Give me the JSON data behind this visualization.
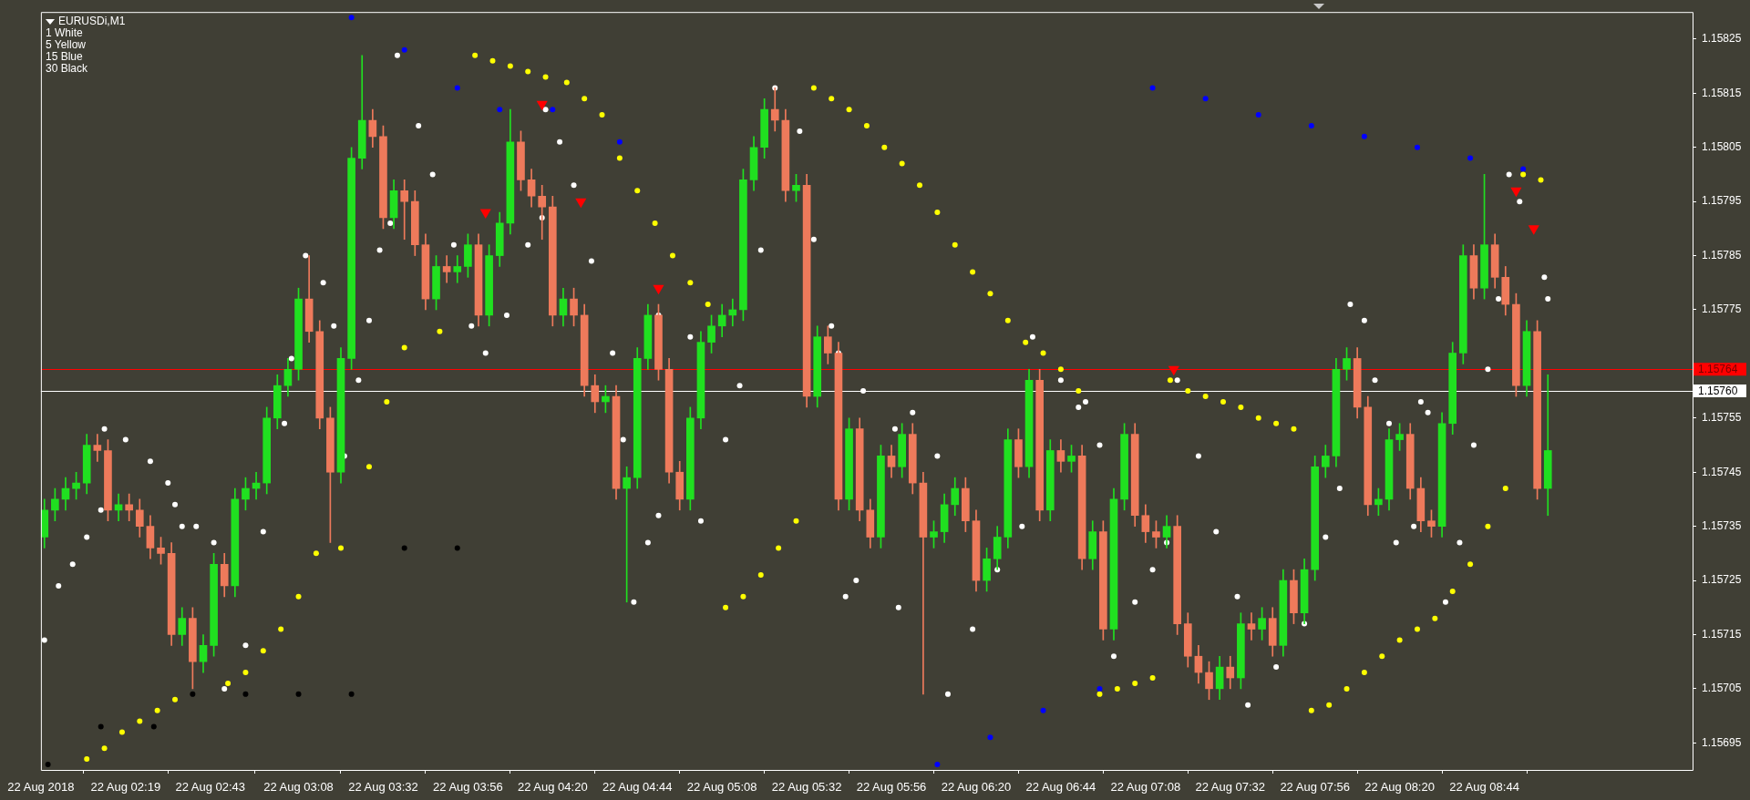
{
  "chart_data": {
    "type": "candlestick",
    "title": "EURUSDi,M1",
    "annotations": [
      "1 White",
      "5 Yellow",
      "15 Blue",
      "30 Black"
    ],
    "x": [
      "2018-08-22T01:56",
      "2018-08-22T01:59",
      "2018-08-22T02:02",
      "2018-08-22T02:05",
      "2018-08-22T02:08",
      "2018-08-22T02:11",
      "2018-08-22T02:14",
      "2018-08-22T02:17",
      "2018-08-22T02:20",
      "2018-08-22T02:23",
      "2018-08-22T02:26",
      "2018-08-22T02:29",
      "2018-08-22T02:32",
      "2018-08-22T02:35",
      "2018-08-22T02:38",
      "2018-08-22T02:41",
      "2018-08-22T02:44",
      "2018-08-22T02:47",
      "2018-08-22T02:50",
      "2018-08-22T02:53",
      "2018-08-22T02:56",
      "2018-08-22T02:59",
      "2018-08-22T03:02",
      "2018-08-22T03:05",
      "2018-08-22T03:08",
      "2018-08-22T03:11",
      "2018-08-22T03:14",
      "2018-08-22T03:17",
      "2018-08-22T03:20",
      "2018-08-22T03:23",
      "2018-08-22T03:26",
      "2018-08-22T03:29",
      "2018-08-22T03:32",
      "2018-08-22T03:35",
      "2018-08-22T03:38",
      "2018-08-22T03:41",
      "2018-08-22T03:44",
      "2018-08-22T03:47",
      "2018-08-22T03:50",
      "2018-08-22T03:53",
      "2018-08-22T03:56",
      "2018-08-22T03:59",
      "2018-08-22T04:02",
      "2018-08-22T04:05",
      "2018-08-22T04:08",
      "2018-08-22T04:11",
      "2018-08-22T04:14",
      "2018-08-22T04:17",
      "2018-08-22T04:20",
      "2018-08-22T04:23",
      "2018-08-22T04:26",
      "2018-08-22T04:29",
      "2018-08-22T04:32",
      "2018-08-22T04:35",
      "2018-08-22T04:38",
      "2018-08-22T04:41",
      "2018-08-22T04:44",
      "2018-08-22T04:47",
      "2018-08-22T04:50",
      "2018-08-22T04:53",
      "2018-08-22T04:56",
      "2018-08-22T04:59",
      "2018-08-22T05:02",
      "2018-08-22T05:05",
      "2018-08-22T05:08",
      "2018-08-22T05:11",
      "2018-08-22T05:14",
      "2018-08-22T05:17",
      "2018-08-22T05:20",
      "2018-08-22T05:23",
      "2018-08-22T05:26",
      "2018-08-22T05:29",
      "2018-08-22T05:32",
      "2018-08-22T05:35",
      "2018-08-22T05:38",
      "2018-08-22T05:41",
      "2018-08-22T05:44",
      "2018-08-22T05:47",
      "2018-08-22T05:50",
      "2018-08-22T05:53",
      "2018-08-22T05:56",
      "2018-08-22T05:59",
      "2018-08-22T06:02",
      "2018-08-22T06:05",
      "2018-08-22T06:08",
      "2018-08-22T06:11",
      "2018-08-22T06:14",
      "2018-08-22T06:17",
      "2018-08-22T06:20",
      "2018-08-22T06:23",
      "2018-08-22T06:26",
      "2018-08-22T06:29",
      "2018-08-22T06:32",
      "2018-08-22T06:35",
      "2018-08-22T06:38",
      "2018-08-22T06:41",
      "2018-08-22T06:44",
      "2018-08-22T06:47",
      "2018-08-22T06:50",
      "2018-08-22T06:53",
      "2018-08-22T06:56",
      "2018-08-22T06:59",
      "2018-08-22T07:02",
      "2018-08-22T07:05",
      "2018-08-22T07:08",
      "2018-08-22T07:11",
      "2018-08-22T07:14",
      "2018-08-22T07:17",
      "2018-08-22T07:20",
      "2018-08-22T07:23",
      "2018-08-22T07:26",
      "2018-08-22T07:29",
      "2018-08-22T07:32",
      "2018-08-22T07:35",
      "2018-08-22T07:38",
      "2018-08-22T07:41",
      "2018-08-22T07:44",
      "2018-08-22T07:47",
      "2018-08-22T07:50",
      "2018-08-22T07:53",
      "2018-08-22T07:56",
      "2018-08-22T07:59",
      "2018-08-22T08:02",
      "2018-08-22T08:05",
      "2018-08-22T08:08",
      "2018-08-22T08:11",
      "2018-08-22T08:14",
      "2018-08-22T08:17",
      "2018-08-22T08:20",
      "2018-08-22T08:23",
      "2018-08-22T08:26",
      "2018-08-22T08:29",
      "2018-08-22T08:32",
      "2018-08-22T08:35",
      "2018-08-22T08:38",
      "2018-08-22T08:41",
      "2018-08-22T08:44",
      "2018-08-22T08:47",
      "2018-08-22T08:50",
      "2018-08-22T08:53",
      "2018-08-22T08:56",
      "2018-08-22T08:59",
      "2018-08-22T09:02"
    ],
    "ohlc": [
      [
        1.15733,
        1.1574,
        1.15731,
        1.15738
      ],
      [
        1.15738,
        1.15742,
        1.15736,
        1.1574
      ],
      [
        1.1574,
        1.15744,
        1.15738,
        1.15742
      ],
      [
        1.15742,
        1.15745,
        1.1574,
        1.15743
      ],
      [
        1.15743,
        1.15752,
        1.15741,
        1.1575
      ],
      [
        1.1575,
        1.15752,
        1.15747,
        1.15749
      ],
      [
        1.15749,
        1.15751,
        1.15736,
        1.15738
      ],
      [
        1.15738,
        1.15741,
        1.15736,
        1.15739
      ],
      [
        1.15739,
        1.15741,
        1.15736,
        1.15738
      ],
      [
        1.15738,
        1.1574,
        1.15733,
        1.15735
      ],
      [
        1.15735,
        1.15737,
        1.15729,
        1.15731
      ],
      [
        1.15731,
        1.15733,
        1.15728,
        1.1573
      ],
      [
        1.1573,
        1.15732,
        1.15713,
        1.15715
      ],
      [
        1.15715,
        1.1572,
        1.15713,
        1.15718
      ],
      [
        1.15718,
        1.1572,
        1.15705,
        1.1571
      ],
      [
        1.1571,
        1.15715,
        1.15708,
        1.15713
      ],
      [
        1.15713,
        1.1573,
        1.15711,
        1.15728
      ],
      [
        1.15728,
        1.1573,
        1.15722,
        1.15724
      ],
      [
        1.15724,
        1.15742,
        1.15722,
        1.1574
      ],
      [
        1.1574,
        1.15744,
        1.15738,
        1.15742
      ],
      [
        1.15742,
        1.15745,
        1.1574,
        1.15743
      ],
      [
        1.15743,
        1.15757,
        1.15741,
        1.15755
      ],
      [
        1.15755,
        1.15763,
        1.15753,
        1.15761
      ],
      [
        1.15761,
        1.15766,
        1.15759,
        1.15764
      ],
      [
        1.15764,
        1.15779,
        1.15762,
        1.15777
      ],
      [
        1.15777,
        1.15785,
        1.15769,
        1.15771
      ],
      [
        1.15771,
        1.15773,
        1.15753,
        1.15755
      ],
      [
        1.15755,
        1.15757,
        1.15732,
        1.15745
      ],
      [
        1.15745,
        1.15768,
        1.15743,
        1.15766
      ],
      [
        1.15766,
        1.15805,
        1.15764,
        1.15803
      ],
      [
        1.15803,
        1.15822,
        1.15801,
        1.1581
      ],
      [
        1.1581,
        1.15812,
        1.15805,
        1.15807
      ],
      [
        1.15807,
        1.15809,
        1.1579,
        1.15792
      ],
      [
        1.15792,
        1.15799,
        1.1579,
        1.15797
      ],
      [
        1.15797,
        1.15799,
        1.15788,
        1.15795
      ],
      [
        1.15795,
        1.15797,
        1.15785,
        1.15787
      ],
      [
        1.15787,
        1.15789,
        1.15775,
        1.15777
      ],
      [
        1.15777,
        1.15785,
        1.15775,
        1.15783
      ],
      [
        1.15783,
        1.15785,
        1.1578,
        1.15782
      ],
      [
        1.15782,
        1.15785,
        1.1578,
        1.15783
      ],
      [
        1.15783,
        1.15789,
        1.15781,
        1.15787
      ],
      [
        1.15787,
        1.15789,
        1.15772,
        1.15774
      ],
      [
        1.15774,
        1.15787,
        1.15772,
        1.15785
      ],
      [
        1.15785,
        1.15793,
        1.15783,
        1.15791
      ],
      [
        1.15791,
        1.15812,
        1.15789,
        1.15806
      ],
      [
        1.15806,
        1.15808,
        1.15797,
        1.15799
      ],
      [
        1.15799,
        1.15801,
        1.15794,
        1.15796
      ],
      [
        1.15796,
        1.15798,
        1.15788,
        1.15794
      ],
      [
        1.15794,
        1.15796,
        1.15772,
        1.15774
      ],
      [
        1.15774,
        1.15779,
        1.15772,
        1.15777
      ],
      [
        1.15777,
        1.15779,
        1.15772,
        1.15774
      ],
      [
        1.15774,
        1.15776,
        1.15759,
        1.15761
      ],
      [
        1.15761,
        1.15763,
        1.15756,
        1.15758
      ],
      [
        1.15758,
        1.15761,
        1.15756,
        1.15759
      ],
      [
        1.15759,
        1.15761,
        1.1574,
        1.15742
      ],
      [
        1.15742,
        1.15746,
        1.15721,
        1.15744
      ],
      [
        1.15744,
        1.15768,
        1.15742,
        1.15766
      ],
      [
        1.15766,
        1.15776,
        1.15764,
        1.15774
      ],
      [
        1.15774,
        1.15776,
        1.15762,
        1.15764
      ],
      [
        1.15764,
        1.15766,
        1.15743,
        1.15745
      ],
      [
        1.15745,
        1.15747,
        1.15738,
        1.1574
      ],
      [
        1.1574,
        1.15757,
        1.15738,
        1.15755
      ],
      [
        1.15755,
        1.15771,
        1.15753,
        1.15769
      ],
      [
        1.15769,
        1.15774,
        1.15767,
        1.15772
      ],
      [
        1.15772,
        1.15776,
        1.1577,
        1.15774
      ],
      [
        1.15774,
        1.15777,
        1.15772,
        1.15775
      ],
      [
        1.15775,
        1.15801,
        1.15773,
        1.15799
      ],
      [
        1.15799,
        1.15807,
        1.15797,
        1.15805
      ],
      [
        1.15805,
        1.15814,
        1.15803,
        1.15812
      ],
      [
        1.15812,
        1.15816,
        1.15808,
        1.1581
      ],
      [
        1.1581,
        1.15812,
        1.15795,
        1.15797
      ],
      [
        1.15797,
        1.158,
        1.15795,
        1.15798
      ],
      [
        1.15798,
        1.158,
        1.15757,
        1.15759
      ],
      [
        1.15759,
        1.15772,
        1.15757,
        1.1577
      ],
      [
        1.1577,
        1.15772,
        1.15765,
        1.15767
      ],
      [
        1.15767,
        1.15769,
        1.15738,
        1.1574
      ],
      [
        1.1574,
        1.15755,
        1.15738,
        1.15753
      ],
      [
        1.15753,
        1.15755,
        1.15736,
        1.15738
      ],
      [
        1.15738,
        1.1574,
        1.15731,
        1.15733
      ],
      [
        1.15733,
        1.1575,
        1.15731,
        1.15748
      ],
      [
        1.15748,
        1.1575,
        1.15744,
        1.15746
      ],
      [
        1.15746,
        1.15754,
        1.15744,
        1.15752
      ],
      [
        1.15752,
        1.15754,
        1.15741,
        1.15743
      ],
      [
        1.15743,
        1.15745,
        1.15704,
        1.15733
      ],
      [
        1.15733,
        1.15736,
        1.15731,
        1.15734
      ],
      [
        1.15734,
        1.15741,
        1.15732,
        1.15739
      ],
      [
        1.15739,
        1.15744,
        1.15737,
        1.15742
      ],
      [
        1.15742,
        1.15744,
        1.15734,
        1.15736
      ],
      [
        1.15736,
        1.15738,
        1.15723,
        1.15725
      ],
      [
        1.15725,
        1.15731,
        1.15723,
        1.15729
      ],
      [
        1.15729,
        1.15735,
        1.15727,
        1.15733
      ],
      [
        1.15733,
        1.15753,
        1.15731,
        1.15751
      ],
      [
        1.15751,
        1.15753,
        1.15744,
        1.15746
      ],
      [
        1.15746,
        1.15764,
        1.15744,
        1.15762
      ],
      [
        1.15762,
        1.15764,
        1.15736,
        1.15738
      ],
      [
        1.15738,
        1.15751,
        1.15736,
        1.15749
      ],
      [
        1.15749,
        1.15751,
        1.15745,
        1.15747
      ],
      [
        1.15747,
        1.1575,
        1.15745,
        1.15748
      ],
      [
        1.15748,
        1.1575,
        1.15727,
        1.15729
      ],
      [
        1.15729,
        1.15736,
        1.15727,
        1.15734
      ],
      [
        1.15734,
        1.15736,
        1.15714,
        1.15716
      ],
      [
        1.15716,
        1.15742,
        1.15714,
        1.1574
      ],
      [
        1.1574,
        1.15754,
        1.15738,
        1.15752
      ],
      [
        1.15752,
        1.15754,
        1.15735,
        1.15737
      ],
      [
        1.15737,
        1.15739,
        1.15732,
        1.15734
      ],
      [
        1.15734,
        1.15736,
        1.15731,
        1.15733
      ],
      [
        1.15733,
        1.15737,
        1.15731,
        1.15735
      ],
      [
        1.15735,
        1.15737,
        1.15715,
        1.15717
      ],
      [
        1.15717,
        1.15719,
        1.15709,
        1.15711
      ],
      [
        1.15711,
        1.15713,
        1.15706,
        1.15708
      ],
      [
        1.15708,
        1.1571,
        1.15703,
        1.15705
      ],
      [
        1.15705,
        1.15711,
        1.15703,
        1.15709
      ],
      [
        1.15709,
        1.15711,
        1.15705,
        1.15707
      ],
      [
        1.15707,
        1.15719,
        1.15705,
        1.15717
      ],
      [
        1.15717,
        1.15719,
        1.15714,
        1.15716
      ],
      [
        1.15716,
        1.1572,
        1.15714,
        1.15718
      ],
      [
        1.15718,
        1.1572,
        1.15711,
        1.15713
      ],
      [
        1.15713,
        1.15727,
        1.15711,
        1.15725
      ],
      [
        1.15725,
        1.15727,
        1.15717,
        1.15719
      ],
      [
        1.15719,
        1.15729,
        1.15717,
        1.15727
      ],
      [
        1.15727,
        1.15748,
        1.15725,
        1.15746
      ],
      [
        1.15746,
        1.1575,
        1.15744,
        1.15748
      ],
      [
        1.15748,
        1.15766,
        1.15746,
        1.15764
      ],
      [
        1.15764,
        1.15768,
        1.15762,
        1.15766
      ],
      [
        1.15766,
        1.15768,
        1.15755,
        1.15757
      ],
      [
        1.15757,
        1.15759,
        1.15737,
        1.15739
      ],
      [
        1.15739,
        1.15742,
        1.15737,
        1.1574
      ],
      [
        1.1574,
        1.15753,
        1.15738,
        1.15751
      ],
      [
        1.15751,
        1.15754,
        1.15749,
        1.15752
      ],
      [
        1.15752,
        1.15754,
        1.1574,
        1.15742
      ],
      [
        1.15742,
        1.15744,
        1.15734,
        1.15736
      ],
      [
        1.15736,
        1.15738,
        1.15733,
        1.15735
      ],
      [
        1.15735,
        1.15756,
        1.15733,
        1.15754
      ],
      [
        1.15754,
        1.15769,
        1.15752,
        1.15767
      ],
      [
        1.15767,
        1.15787,
        1.15765,
        1.15785
      ],
      [
        1.15785,
        1.15787,
        1.15777,
        1.15779
      ],
      [
        1.15779,
        1.158,
        1.15777,
        1.15787
      ],
      [
        1.15787,
        1.15789,
        1.15779,
        1.15781
      ],
      [
        1.15781,
        1.15783,
        1.15774,
        1.15776
      ],
      [
        1.15776,
        1.15778,
        1.15759,
        1.15761
      ],
      [
        1.15761,
        1.15773,
        1.15759,
        1.15771
      ],
      [
        1.15771,
        1.15773,
        1.1574,
        1.15742
      ],
      [
        1.15742,
        1.15763,
        1.15737,
        1.15749
      ]
    ],
    "colors": [
      "#20e020",
      "#20e020",
      "#20e020",
      "#20e020",
      "#20e020",
      "#ee7a5b",
      "#ee7a5b",
      "#20e020",
      "#ee7a5b",
      "#ee7a5b",
      "#ee7a5b",
      "#ee7a5b",
      "#ee7a5b",
      "#20e020",
      "#ee7a5b",
      "#20e020",
      "#20e020",
      "#ee7a5b",
      "#20e020",
      "#20e020",
      "#20e020",
      "#20e020",
      "#20e020",
      "#20e020",
      "#20e020",
      "#ee7a5b",
      "#ee7a5b",
      "#ee7a5b",
      "#20e020",
      "#20e020",
      "#20e020",
      "#ee7a5b",
      "#ee7a5b",
      "#20e020",
      "#ee7a5b",
      "#ee7a5b",
      "#ee7a5b",
      "#20e020",
      "#ee7a5b",
      "#20e020",
      "#20e020",
      "#ee7a5b",
      "#20e020",
      "#20e020",
      "#20e020",
      "#ee7a5b",
      "#ee7a5b",
      "#ee7a5b",
      "#ee7a5b",
      "#20e020",
      "#ee7a5b",
      "#ee7a5b",
      "#ee7a5b",
      "#20e020",
      "#ee7a5b",
      "#20e020",
      "#20e020",
      "#20e020",
      "#ee7a5b",
      "#ee7a5b",
      "#ee7a5b",
      "#20e020",
      "#20e020",
      "#20e020",
      "#20e020",
      "#20e020",
      "#20e020",
      "#20e020",
      "#20e020",
      "#ee7a5b",
      "#ee7a5b",
      "#20e020",
      "#ee7a5b",
      "#20e020",
      "#ee7a5b",
      "#ee7a5b",
      "#20e020",
      "#ee7a5b",
      "#ee7a5b",
      "#20e020",
      "#ee7a5b",
      "#20e020",
      "#ee7a5b",
      "#ee7a5b",
      "#20e020",
      "#20e020",
      "#20e020",
      "#ee7a5b",
      "#ee7a5b",
      "#20e020",
      "#20e020",
      "#20e020",
      "#ee7a5b",
      "#20e020",
      "#ee7a5b",
      "#20e020",
      "#ee7a5b",
      "#20e020",
      "#ee7a5b",
      "#20e020",
      "#ee7a5b",
      "#20e020",
      "#20e020",
      "#ee7a5b",
      "#ee7a5b",
      "#ee7a5b",
      "#20e020",
      "#ee7a5b",
      "#ee7a5b",
      "#ee7a5b",
      "#ee7a5b",
      "#20e020",
      "#ee7a5b",
      "#20e020",
      "#ee7a5b",
      "#20e020",
      "#ee7a5b",
      "#20e020",
      "#ee7a5b",
      "#20e020",
      "#20e020",
      "#20e020",
      "#20e020",
      "#20e020",
      "#ee7a5b",
      "#ee7a5b",
      "#20e020",
      "#20e020",
      "#20e020",
      "#ee7a5b",
      "#ee7a5b",
      "#ee7a5b",
      "#20e020",
      "#20e020",
      "#20e020",
      "#ee7a5b",
      "#20e020",
      "#ee7a5b",
      "#ee7a5b",
      "#ee7a5b",
      "#20e020",
      "#ee7a5b",
      "#20e020"
    ],
    "series": [
      {
        "type": "scatter",
        "color": "#ffffff",
        "marker": "circle",
        "x": [
          "2018-08-22T01:56",
          "2018-08-22T02:00",
          "2018-08-22T02:04",
          "2018-08-22T02:08",
          "2018-08-22T02:12",
          "2018-08-22T02:13",
          "2018-08-22T02:19",
          "2018-08-22T02:26",
          "2018-08-22T02:31",
          "2018-08-22T02:33",
          "2018-08-22T02:35",
          "2018-08-22T02:39",
          "2018-08-22T02:44",
          "2018-08-22T02:47",
          "2018-08-22T02:53",
          "2018-08-22T02:58",
          "2018-08-22T03:04",
          "2018-08-22T03:06",
          "2018-08-22T03:10",
          "2018-08-22T03:15",
          "2018-08-22T03:18",
          "2018-08-22T03:21",
          "2018-08-22T03:25",
          "2018-08-22T03:28",
          "2018-08-22T03:31",
          "2018-08-22T03:34",
          "2018-08-22T03:36",
          "2018-08-22T03:42",
          "2018-08-22T03:46",
          "2018-08-22T03:52",
          "2018-08-22T03:57",
          "2018-08-22T04:01",
          "2018-08-22T04:07",
          "2018-08-22T04:13",
          "2018-08-22T04:17",
          "2018-08-22T04:18",
          "2018-08-22T04:22",
          "2018-08-22T04:26",
          "2018-08-22T04:31",
          "2018-08-22T04:37",
          "2018-08-22T04:40",
          "2018-08-22T04:43",
          "2018-08-22T04:47",
          "2018-08-22T04:50",
          "2018-08-22T04:50",
          "2018-08-22T04:59",
          "2018-08-22T05:02",
          "2018-08-22T05:09",
          "2018-08-22T05:13",
          "2018-08-22T05:19",
          "2018-08-22T05:23",
          "2018-08-22T05:30",
          "2018-08-22T05:34",
          "2018-08-22T05:39",
          "2018-08-22T05:41",
          "2018-08-22T05:43",
          "2018-08-22T05:46",
          "2018-08-22T05:48",
          "2018-08-22T05:57",
          "2018-08-22T05:58",
          "2018-08-22T06:02",
          "2018-08-22T06:09",
          "2018-08-22T06:12",
          "2018-08-22T06:19",
          "2018-08-22T06:26",
          "2018-08-22T06:33",
          "2018-08-22T06:36",
          "2018-08-22T06:44",
          "2018-08-22T06:49",
          "2018-08-22T06:51",
          "2018-08-22T06:55",
          "2018-08-22T06:59",
          "2018-08-22T07:05",
          "2018-08-22T07:10",
          "2018-08-22T07:14",
          "2018-08-22T07:17",
          "2018-08-22T07:23",
          "2018-08-22T07:28",
          "2018-08-22T07:34",
          "2018-08-22T07:37",
          "2018-08-22T07:45",
          "2018-08-22T07:53",
          "2018-08-22T07:59",
          "2018-08-22T08:03",
          "2018-08-22T08:06",
          "2018-08-22T08:10",
          "2018-08-22T08:13",
          "2018-08-22T08:17",
          "2018-08-22T08:19",
          "2018-08-22T08:24",
          "2018-08-22T08:26",
          "2018-08-22T08:28",
          "2018-08-22T08:33",
          "2018-08-22T08:37",
          "2018-08-22T08:41",
          "2018-08-22T08:45",
          "2018-08-22T08:48",
          "2018-08-22T08:51",
          "2018-08-22T08:54",
          "2018-08-22T09:01",
          "2018-08-22T09:02"
        ],
        "values": [
          1.15714,
          1.15724,
          1.15728,
          1.15733,
          1.15738,
          1.15753,
          1.15751,
          1.15747,
          1.15743,
          1.15739,
          1.15735,
          1.15735,
          1.15732,
          1.15705,
          1.15713,
          1.15734,
          1.15754,
          1.15766,
          1.15785,
          1.1578,
          1.15772,
          1.15748,
          1.15762,
          1.15773,
          1.15786,
          1.15791,
          1.15822,
          1.15809,
          1.158,
          1.15787,
          1.15772,
          1.15767,
          1.15774,
          1.15787,
          1.15792,
          1.15812,
          1.15806,
          1.15798,
          1.15784,
          1.15767,
          1.15751,
          1.15721,
          1.15732,
          1.15737,
          1.15774,
          1.1577,
          1.15736,
          1.15751,
          1.15761,
          1.15786,
          1.15816,
          1.15808,
          1.15788,
          1.15772,
          1.15767,
          1.15722,
          1.15725,
          1.1576,
          1.15753,
          1.1572,
          1.15756,
          1.15748,
          1.15704,
          1.15716,
          1.15727,
          1.15735,
          1.1577,
          1.15762,
          1.15757,
          1.15758,
          1.1575,
          1.15711,
          1.15721,
          1.15727,
          1.15732,
          1.15762,
          1.15748,
          1.15734,
          1.15722,
          1.15702,
          1.15709,
          1.15717,
          1.15733,
          1.15742,
          1.15776,
          1.15773,
          1.15762,
          1.15754,
          1.15732,
          1.15735,
          1.15758,
          1.15756,
          1.15721,
          1.15732,
          1.1575,
          1.15764,
          1.15777,
          1.158,
          1.15795,
          1.15781,
          1.15777
        ]
      },
      {
        "type": "scatter",
        "color": "#ffff00",
        "marker": "circle",
        "x": [
          "2018-08-22T02:08",
          "2018-08-22T02:13",
          "2018-08-22T02:18",
          "2018-08-22T02:23",
          "2018-08-22T02:28",
          "2018-08-22T02:33",
          "2018-08-22T02:48",
          "2018-08-22T02:53",
          "2018-08-22T02:58",
          "2018-08-22T03:03",
          "2018-08-22T03:08",
          "2018-08-22T03:13",
          "2018-08-22T03:20",
          "2018-08-22T03:28",
          "2018-08-22T03:33",
          "2018-08-22T03:38",
          "2018-08-22T03:48",
          "2018-08-22T03:58",
          "2018-08-22T04:03",
          "2018-08-22T04:08",
          "2018-08-22T04:13",
          "2018-08-22T04:18",
          "2018-08-22T04:24",
          "2018-08-22T04:29",
          "2018-08-22T04:34",
          "2018-08-22T04:39",
          "2018-08-22T04:44",
          "2018-08-22T04:49",
          "2018-08-22T04:54",
          "2018-08-22T04:59",
          "2018-08-22T05:04",
          "2018-08-22T05:09",
          "2018-08-22T05:14",
          "2018-08-22T05:19",
          "2018-08-22T05:24",
          "2018-08-22T05:29",
          "2018-08-22T05:34",
          "2018-08-22T05:39",
          "2018-08-22T05:44",
          "2018-08-22T05:49",
          "2018-08-22T05:54",
          "2018-08-22T05:59",
          "2018-08-22T06:04",
          "2018-08-22T06:09",
          "2018-08-22T06:14",
          "2018-08-22T06:19",
          "2018-08-22T06:24",
          "2018-08-22T06:29",
          "2018-08-22T06:34",
          "2018-08-22T06:39",
          "2018-08-22T06:44",
          "2018-08-22T06:49",
          "2018-08-22T06:55",
          "2018-08-22T07:00",
          "2018-08-22T07:05",
          "2018-08-22T07:10",
          "2018-08-22T07:15",
          "2018-08-22T07:20",
          "2018-08-22T07:25",
          "2018-08-22T07:30",
          "2018-08-22T07:35",
          "2018-08-22T07:40",
          "2018-08-22T07:45",
          "2018-08-22T07:50",
          "2018-08-22T07:55",
          "2018-08-22T08:00",
          "2018-08-22T08:05",
          "2018-08-22T08:10",
          "2018-08-22T08:15",
          "2018-08-22T08:20",
          "2018-08-22T08:25",
          "2018-08-22T08:30",
          "2018-08-22T08:35",
          "2018-08-22T08:40",
          "2018-08-22T08:45",
          "2018-08-22T08:50",
          "2018-08-22T08:55",
          "2018-08-22T09:00"
        ],
        "values": [
          1.15692,
          1.15694,
          1.15697,
          1.15699,
          1.15701,
          1.15703,
          1.15706,
          1.15708,
          1.15712,
          1.15716,
          1.15722,
          1.1573,
          1.15731,
          1.15746,
          1.15758,
          1.15768,
          1.15771,
          1.15822,
          1.15821,
          1.1582,
          1.15819,
          1.15818,
          1.15817,
          1.15814,
          1.15811,
          1.15803,
          1.15797,
          1.15791,
          1.15785,
          1.1578,
          1.15776,
          1.1572,
          1.15722,
          1.15726,
          1.15731,
          1.15736,
          1.15816,
          1.15814,
          1.15812,
          1.15809,
          1.15805,
          1.15802,
          1.15798,
          1.15793,
          1.15787,
          1.15782,
          1.15778,
          1.15773,
          1.15769,
          1.15767,
          1.15764,
          1.1576,
          1.15704,
          1.15705,
          1.15706,
          1.15707,
          1.15762,
          1.1576,
          1.15759,
          1.15758,
          1.15757,
          1.15755,
          1.15754,
          1.15753,
          1.15701,
          1.15702,
          1.15705,
          1.15708,
          1.15711,
          1.15714,
          1.15716,
          1.15718,
          1.15723,
          1.15728,
          1.15735,
          1.15742,
          1.158,
          1.15799
        ]
      },
      {
        "type": "scatter",
        "color": "#0000ff",
        "marker": "circle",
        "x": [
          "2018-08-22T03:23",
          "2018-08-22T03:38",
          "2018-08-22T03:53",
          "2018-08-22T04:05",
          "2018-08-22T04:20",
          "2018-08-22T04:39",
          "2018-08-22T06:09",
          "2018-08-22T06:24",
          "2018-08-22T06:39",
          "2018-08-22T06:55",
          "2018-08-22T07:10",
          "2018-08-22T07:25",
          "2018-08-22T07:40",
          "2018-08-22T07:55",
          "2018-08-22T08:10",
          "2018-08-22T08:25",
          "2018-08-22T08:40",
          "2018-08-22T08:55"
        ],
        "values": [
          1.15829,
          1.15823,
          1.15816,
          1.15812,
          1.15812,
          1.15806,
          1.15691,
          1.15696,
          1.15701,
          1.15705,
          1.15816,
          1.15814,
          1.15811,
          1.15809,
          1.15807,
          1.15805,
          1.15803,
          1.15801
        ]
      },
      {
        "type": "scatter",
        "color": "#000000",
        "marker": "circle",
        "x": [
          "2018-08-22T01:57",
          "2018-08-22T02:12",
          "2018-08-22T02:27",
          "2018-08-22T02:38",
          "2018-08-22T02:53",
          "2018-08-22T03:08",
          "2018-08-22T03:23",
          "2018-08-22T03:38",
          "2018-08-22T03:53"
        ],
        "values": [
          1.15691,
          1.15698,
          1.15698,
          1.15704,
          1.15704,
          1.15704,
          1.15704,
          1.15731,
          1.15731
        ]
      },
      {
        "type": "scatter",
        "color": "#ff0000",
        "marker": "triangle",
        "x": [
          "2018-08-22T04:01",
          "2018-08-22T04:17",
          "2018-08-22T04:28",
          "2018-08-22T04:50",
          "2018-08-22T07:16",
          "2018-08-22T08:53",
          "2018-08-22T08:58"
        ],
        "values": [
          1.15793,
          1.15813,
          1.15795,
          1.15779,
          1.15764,
          1.15797,
          1.1579
        ]
      }
    ],
    "xlim": [
      "2018-08-22T01:55",
      "2018-08-22T09:43"
    ],
    "xticks": [
      {
        "value": "2018-08-22T01:55",
        "label": "22 Aug 2018"
      },
      {
        "value": "2018-08-22T02:19",
        "label": "22 Aug 02:19"
      },
      {
        "value": "2018-08-22T02:43",
        "label": "22 Aug 02:43"
      },
      {
        "value": "2018-08-22T03:08",
        "label": "22 Aug 03:08"
      },
      {
        "value": "2018-08-22T03:32",
        "label": "22 Aug 03:32"
      },
      {
        "value": "2018-08-22T03:56",
        "label": "22 Aug 03:56"
      },
      {
        "value": "2018-08-22T04:20",
        "label": "22 Aug 04:20"
      },
      {
        "value": "2018-08-22T04:44",
        "label": "22 Aug 04:44"
      },
      {
        "value": "2018-08-22T05:08",
        "label": "22 Aug 05:08"
      },
      {
        "value": "2018-08-22T05:32",
        "label": "22 Aug 05:32"
      },
      {
        "value": "2018-08-22T05:56",
        "label": "22 Aug 05:56"
      },
      {
        "value": "2018-08-22T06:20",
        "label": "22 Aug 06:20"
      },
      {
        "value": "2018-08-22T06:44",
        "label": "22 Aug 06:44"
      },
      {
        "value": "2018-08-22T07:08",
        "label": "22 Aug 07:08"
      },
      {
        "value": "2018-08-22T07:32",
        "label": "22 Aug 07:32"
      },
      {
        "value": "2018-08-22T07:56",
        "label": "22 Aug 07:56"
      },
      {
        "value": "2018-08-22T08:20",
        "label": "22 Aug 08:20"
      },
      {
        "value": "2018-08-22T08:44",
        "label": "22 Aug 08:44"
      }
    ],
    "ylim": [
      1.1569,
      1.1583
    ],
    "yticks": [
      1.15695,
      1.15705,
      1.15715,
      1.15725,
      1.15735,
      1.15745,
      1.15755,
      {
        "value": 1.15765,
        "label": null
      },
      1.15775,
      1.15785,
      1.15795,
      1.15805,
      1.15815,
      1.15825
    ],
    "ref_lines": [
      {
        "axis": "y",
        "value": 1.15764,
        "label": "1.15764",
        "color": "#ff0000"
      },
      {
        "axis": "y",
        "value": 1.1576,
        "label": "1.15760",
        "color": "#ffffff"
      }
    ]
  }
}
